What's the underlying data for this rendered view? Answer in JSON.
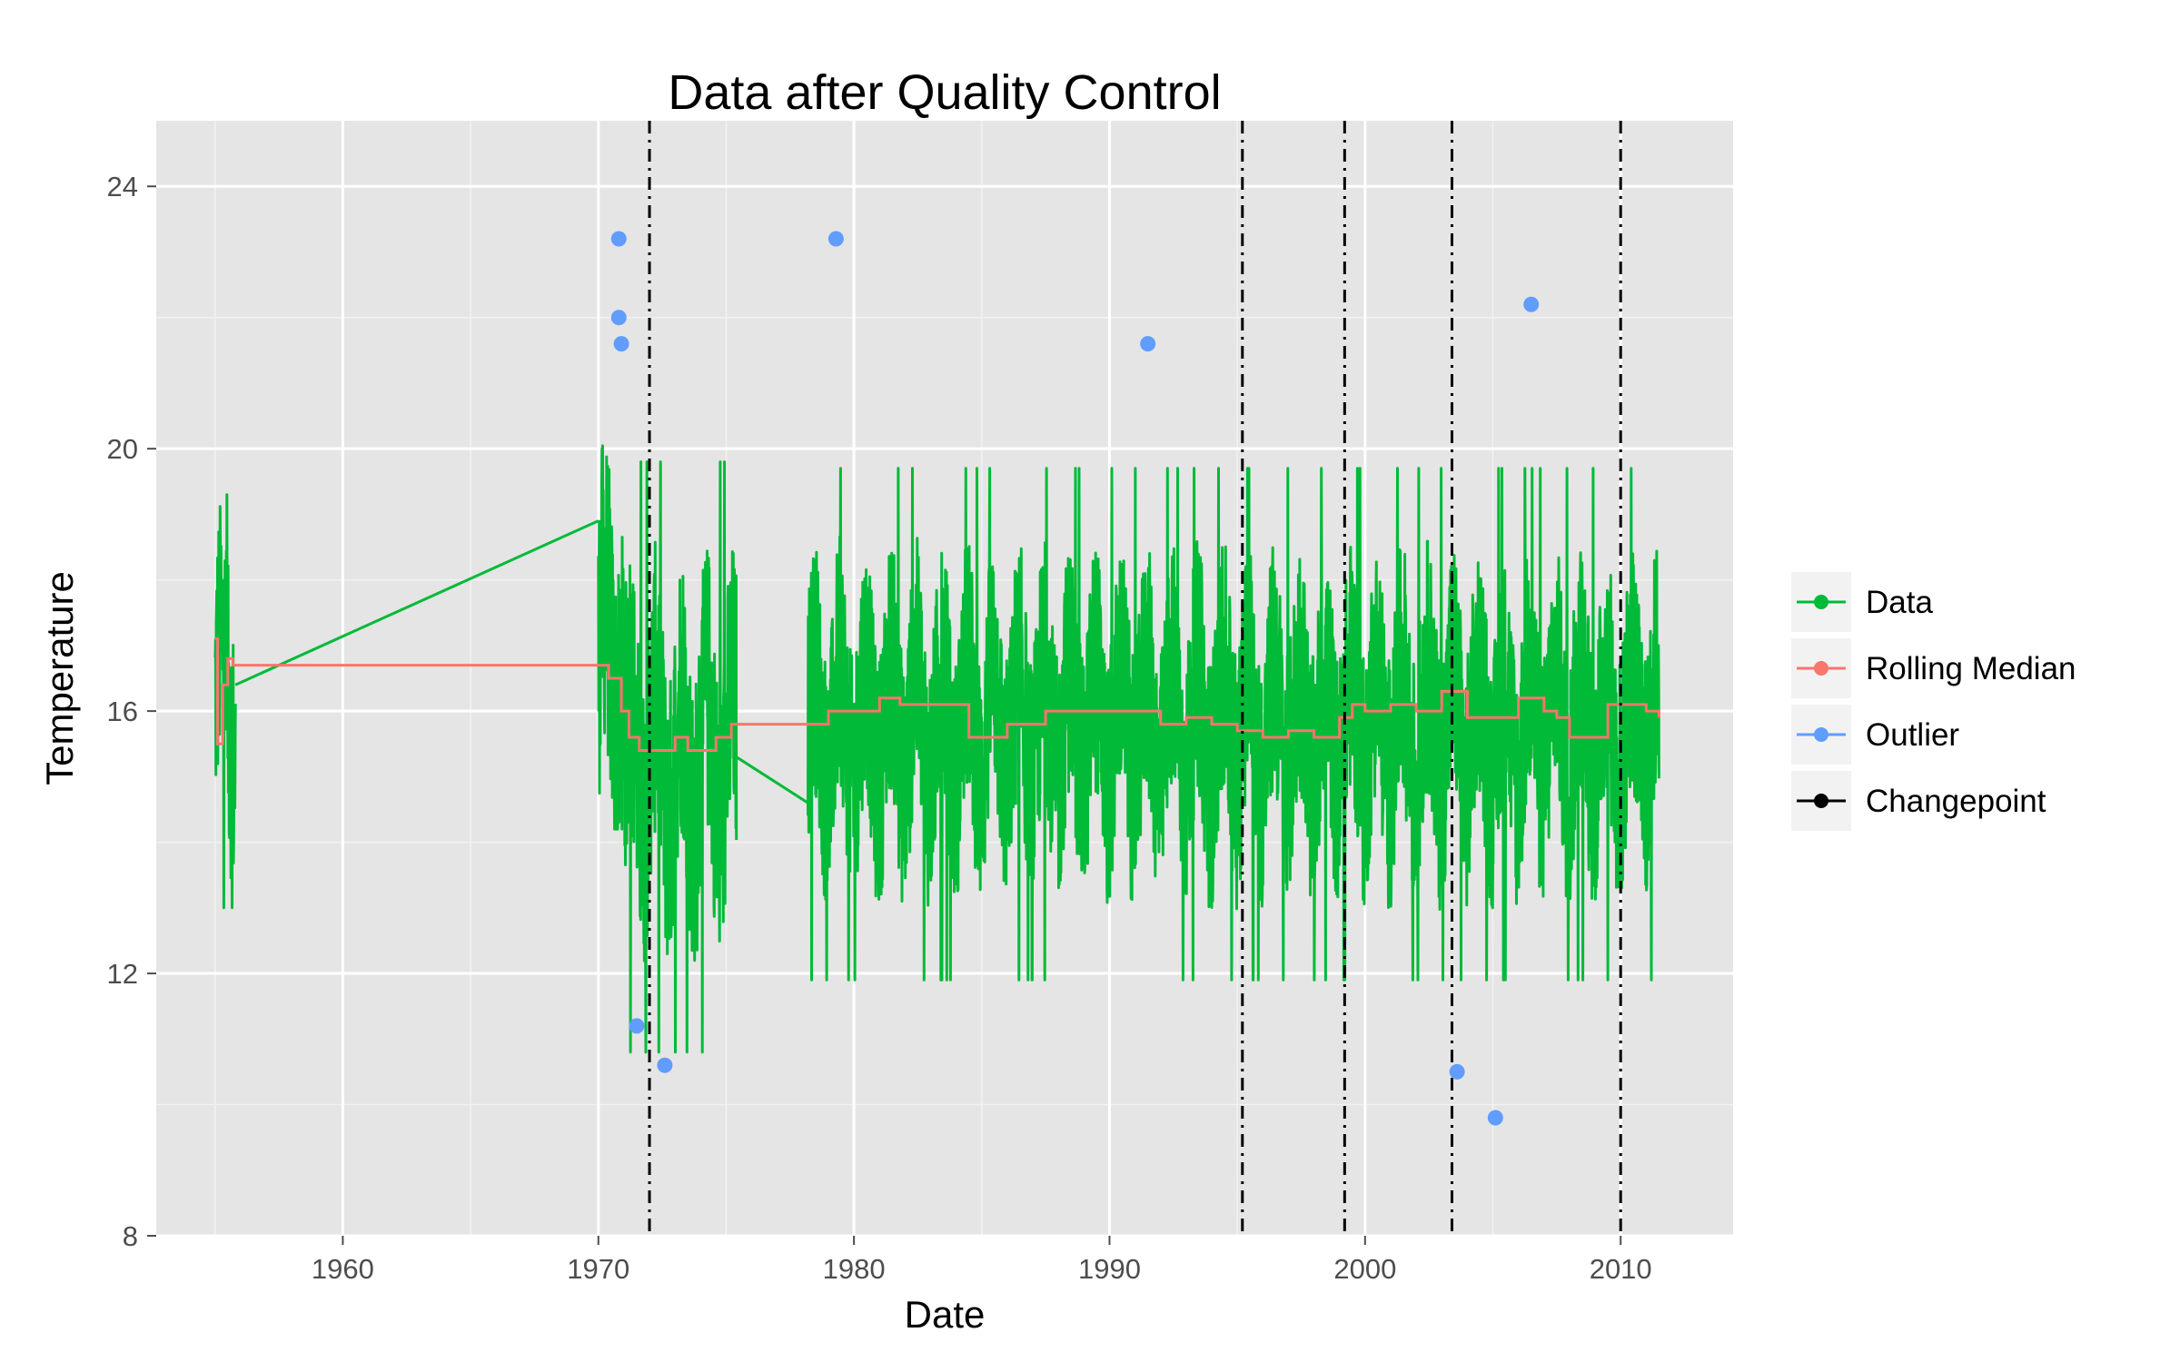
{
  "chart_data": {
    "type": "line",
    "title": "Data after Quality Control",
    "xlabel": "Date",
    "ylabel": "Temperature",
    "xlim": [
      1952.7,
      2014.4
    ],
    "ylim": [
      8,
      25
    ],
    "x_ticks": [
      "1960",
      "1970",
      "1980",
      "1990",
      "2000",
      "2010"
    ],
    "x_tick_values": [
      1960,
      1970,
      1980,
      1990,
      2000,
      2010
    ],
    "y_ticks": [
      "8",
      "12",
      "16",
      "20",
      "24"
    ],
    "y_tick_values": [
      8,
      12,
      16,
      20,
      24
    ],
    "grid": true,
    "legend_position": "right",
    "legend": [
      {
        "label": "Data",
        "color": "#00ba38",
        "marker": "line-point"
      },
      {
        "label": "Rolling Median",
        "color": "#f8766d",
        "marker": "line-point"
      },
      {
        "label": "Outlier",
        "color": "#619cff",
        "marker": "line-point"
      },
      {
        "label": "Changepoint",
        "color": "#000000",
        "marker": "line-point"
      }
    ],
    "series": [
      {
        "name": "Data",
        "color": "#00ba38",
        "segments": [
          {
            "x_start": 1955.0,
            "x_end": 1955.8,
            "mean": 16.2,
            "amplitude": 2.8,
            "min": 13.0,
            "max": 19.3
          },
          {
            "x_start": 1970.0,
            "x_end": 1971.0,
            "mean": 16.8,
            "amplitude": 3.2,
            "min": 14.2,
            "max": 21.2
          },
          {
            "x_start": 1971.0,
            "x_end": 1975.4,
            "mean": 15.3,
            "amplitude": 3.0,
            "min": 10.8,
            "max": 20.2
          },
          {
            "x_start": 1978.2,
            "x_end": 2011.5,
            "mean": 15.8,
            "amplitude": 2.6,
            "min": 10.8,
            "max": 20.2
          }
        ],
        "connectors": [
          {
            "x": [
              1955.8,
              1970.0
            ],
            "y": [
              16.4,
              18.9
            ]
          },
          {
            "x": [
              1975.4,
              1978.2
            ],
            "y": [
              15.3,
              14.6
            ]
          }
        ]
      },
      {
        "name": "Rolling Median",
        "color": "#f8766d",
        "x": [
          1955.0,
          1955.1,
          1955.3,
          1955.5,
          1955.7,
          1970.0,
          1970.4,
          1970.9,
          1971.2,
          1971.6,
          1972.5,
          1973.0,
          1973.5,
          1974.0,
          1974.6,
          1975.2,
          1975.5,
          1979.0,
          1980.0,
          1981.0,
          1981.8,
          1984.5,
          1986.0,
          1987.5,
          1990.0,
          1992.0,
          1993.0,
          1994.0,
          1995.0,
          1996.0,
          1997.0,
          1998.0,
          1999.0,
          1999.5,
          2000.0,
          2001.0,
          2002.0,
          2003.0,
          2004.0,
          2005.0,
          2006.0,
          2007.0,
          2007.5,
          2008.0,
          2009.5,
          2010.0,
          2011.0,
          2011.5
        ],
        "y": [
          17.1,
          15.5,
          16.4,
          16.8,
          16.7,
          16.7,
          16.5,
          16.0,
          15.6,
          15.4,
          15.4,
          15.6,
          15.4,
          15.4,
          15.6,
          15.8,
          15.8,
          16.0,
          16.0,
          16.2,
          16.1,
          15.6,
          15.8,
          16.0,
          16.0,
          15.8,
          15.9,
          15.8,
          15.7,
          15.6,
          15.7,
          15.6,
          15.9,
          16.1,
          16.0,
          16.1,
          16.0,
          16.3,
          15.9,
          15.9,
          16.2,
          16.0,
          15.9,
          15.6,
          16.1,
          16.1,
          16.0,
          15.9
        ]
      },
      {
        "name": "Outlier",
        "color": "#619cff",
        "x": [
          1970.8,
          1970.8,
          1970.9,
          1971.5,
          1972.6,
          1979.3,
          1991.5,
          2003.6,
          2005.1,
          2006.5
        ],
        "y": [
          23.2,
          22.0,
          21.6,
          11.2,
          10.6,
          23.2,
          21.6,
          10.5,
          9.8,
          22.2
        ]
      },
      {
        "name": "Changepoint",
        "color": "#000000",
        "x": [
          1972.0,
          1995.2,
          1999.2,
          2003.4,
          2010.0
        ]
      }
    ]
  }
}
